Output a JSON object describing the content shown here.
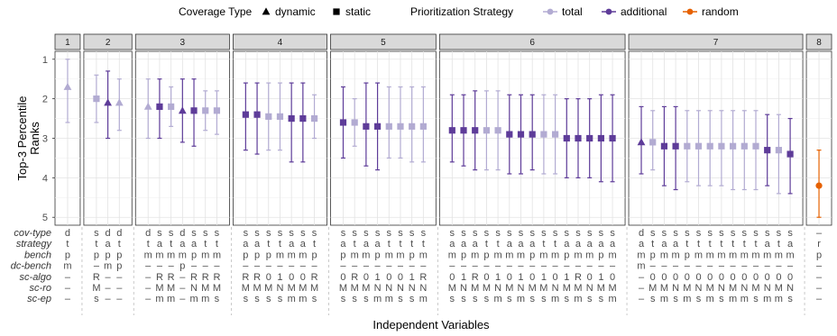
{
  "legend": {
    "shape_title": "Coverage Type",
    "shapes": [
      {
        "label": "dynamic",
        "shape": "triangle"
      },
      {
        "label": "static",
        "shape": "square"
      }
    ],
    "color_title": "Prioritization Strategy",
    "colors": [
      {
        "label": "total",
        "color": "#b2abd2"
      },
      {
        "label": "additional",
        "color": "#5e3c99"
      },
      {
        "label": "random",
        "color": "#e66101"
      }
    ]
  },
  "row_labels": [
    "cov-type",
    "strategy",
    "bench",
    "dc-bench",
    "sc-algo",
    "sc-ro",
    "sc-ep"
  ],
  "chart_data": {
    "type": "scatter",
    "ylabel": "Top-3 Percentile Ranks",
    "xlabel": "Independent Variables",
    "ylim": [
      1,
      5
    ],
    "y_reversed": true,
    "yticks": [
      1,
      2,
      3,
      4,
      5
    ],
    "panels": [
      {
        "label": "1",
        "points": [
          {
            "y": 1.7,
            "lo": 1.0,
            "hi": 2.6,
            "color": "total",
            "shape": "triangle",
            "cells": [
              "d",
              "t",
              "p",
              "m",
              "–",
              "–",
              "–"
            ]
          }
        ]
      },
      {
        "label": "2",
        "points": [
          {
            "y": 2.0,
            "lo": 1.4,
            "hi": 2.6,
            "color": "total",
            "shape": "square",
            "cells": [
              "s",
              "t",
              "p",
              "–",
              "R",
              "M",
              "s"
            ]
          },
          {
            "y": 2.1,
            "lo": 1.3,
            "hi": 3.0,
            "color": "additional",
            "shape": "triangle",
            "cells": [
              "d",
              "a",
              "p",
              "m",
              "–",
              "–",
              "–"
            ]
          },
          {
            "y": 2.1,
            "lo": 1.5,
            "hi": 2.8,
            "color": "total",
            "shape": "triangle",
            "cells": [
              "d",
              "t",
              "p",
              "p",
              "–",
              "–",
              "–"
            ]
          }
        ]
      },
      {
        "label": "3",
        "points": [
          {
            "y": 2.2,
            "lo": 1.5,
            "hi": 3.0,
            "color": "total",
            "shape": "triangle",
            "cells": [
              "d",
              "t",
              "m",
              "–",
              "–",
              "–",
              "–"
            ]
          },
          {
            "y": 2.2,
            "lo": 1.5,
            "hi": 3.0,
            "color": "additional",
            "shape": "square",
            "cells": [
              "s",
              "a",
              "m",
              "–",
              "R",
              "M",
              "m"
            ]
          },
          {
            "y": 2.2,
            "lo": 1.7,
            "hi": 2.7,
            "color": "total",
            "shape": "square",
            "cells": [
              "s",
              "t",
              "m",
              "–",
              "R",
              "M",
              "m"
            ]
          },
          {
            "y": 2.3,
            "lo": 1.5,
            "hi": 3.1,
            "color": "additional",
            "shape": "triangle",
            "cells": [
              "d",
              "a",
              "m",
              "p",
              "–",
              "–",
              "–"
            ]
          },
          {
            "y": 2.3,
            "lo": 1.5,
            "hi": 3.2,
            "color": "additional",
            "shape": "square",
            "cells": [
              "s",
              "a",
              "p",
              "–",
              "R",
              "N",
              "m"
            ]
          },
          {
            "y": 2.3,
            "lo": 1.8,
            "hi": 2.8,
            "color": "total",
            "shape": "square",
            "cells": [
              "s",
              "t",
              "m",
              "–",
              "R",
              "M",
              "m"
            ]
          },
          {
            "y": 2.3,
            "lo": 1.8,
            "hi": 2.9,
            "color": "total",
            "shape": "square",
            "cells": [
              "s",
              "t",
              "m",
              "–",
              "R",
              "M",
              "s"
            ]
          }
        ]
      },
      {
        "label": "4",
        "points": [
          {
            "y": 2.4,
            "lo": 1.6,
            "hi": 3.3,
            "color": "additional",
            "shape": "square",
            "cells": [
              "s",
              "a",
              "p",
              "–",
              "R",
              "M",
              "s"
            ]
          },
          {
            "y": 2.4,
            "lo": 1.6,
            "hi": 3.4,
            "color": "additional",
            "shape": "square",
            "cells": [
              "s",
              "a",
              "p",
              "–",
              "R",
              "M",
              "s"
            ]
          },
          {
            "y": 2.45,
            "lo": 1.6,
            "hi": 3.3,
            "color": "total",
            "shape": "square",
            "cells": [
              "s",
              "t",
              "p",
              "–",
              "0",
              "M",
              "s"
            ]
          },
          {
            "y": 2.45,
            "lo": 1.6,
            "hi": 3.3,
            "color": "total",
            "shape": "square",
            "cells": [
              "s",
              "t",
              "m",
              "–",
              "1",
              "N",
              "s"
            ]
          },
          {
            "y": 2.5,
            "lo": 1.6,
            "hi": 3.6,
            "color": "additional",
            "shape": "square",
            "cells": [
              "s",
              "a",
              "m",
              "–",
              "0",
              "M",
              "m"
            ]
          },
          {
            "y": 2.5,
            "lo": 1.6,
            "hi": 3.6,
            "color": "additional",
            "shape": "square",
            "cells": [
              "s",
              "a",
              "m",
              "–",
              "0",
              "M",
              "m"
            ]
          },
          {
            "y": 2.5,
            "lo": 1.9,
            "hi": 3.0,
            "color": "total",
            "shape": "square",
            "cells": [
              "s",
              "t",
              "p",
              "–",
              "R",
              "M",
              "s"
            ]
          }
        ]
      },
      {
        "label": "5",
        "points": [
          {
            "y": 2.6,
            "lo": 1.7,
            "hi": 3.5,
            "color": "additional",
            "shape": "square",
            "cells": [
              "s",
              "a",
              "p",
              "–",
              "0",
              "M",
              "s"
            ]
          },
          {
            "y": 2.6,
            "lo": 2.0,
            "hi": 3.2,
            "color": "total",
            "shape": "square",
            "cells": [
              "s",
              "t",
              "m",
              "–",
              "R",
              "M",
              "s"
            ]
          },
          {
            "y": 2.7,
            "lo": 1.6,
            "hi": 3.7,
            "color": "additional",
            "shape": "square",
            "cells": [
              "s",
              "a",
              "m",
              "–",
              "0",
              "M",
              "s"
            ]
          },
          {
            "y": 2.7,
            "lo": 1.6,
            "hi": 3.8,
            "color": "additional",
            "shape": "square",
            "cells": [
              "s",
              "a",
              "p",
              "–",
              "1",
              "N",
              "m"
            ]
          },
          {
            "y": 2.7,
            "lo": 1.7,
            "hi": 3.5,
            "color": "total",
            "shape": "square",
            "cells": [
              "s",
              "t",
              "m",
              "–",
              "0",
              "N",
              "m"
            ]
          },
          {
            "y": 2.7,
            "lo": 1.7,
            "hi": 3.5,
            "color": "total",
            "shape": "square",
            "cells": [
              "s",
              "t",
              "m",
              "–",
              "0",
              "N",
              "s"
            ]
          },
          {
            "y": 2.7,
            "lo": 1.7,
            "hi": 3.6,
            "color": "total",
            "shape": "square",
            "cells": [
              "s",
              "t",
              "p",
              "–",
              "1",
              "N",
              "s"
            ]
          },
          {
            "y": 2.7,
            "lo": 1.7,
            "hi": 3.6,
            "color": "total",
            "shape": "square",
            "cells": [
              "s",
              "t",
              "m",
              "–",
              "R",
              "N",
              "m"
            ]
          }
        ]
      },
      {
        "label": "6",
        "points": [
          {
            "y": 2.8,
            "lo": 1.9,
            "hi": 3.6,
            "color": "additional",
            "shape": "square",
            "cells": [
              "s",
              "a",
              "m",
              "–",
              "0",
              "M",
              "s"
            ]
          },
          {
            "y": 2.8,
            "lo": 1.9,
            "hi": 3.7,
            "color": "additional",
            "shape": "square",
            "cells": [
              "s",
              "a",
              "p",
              "–",
              "1",
              "N",
              "s"
            ]
          },
          {
            "y": 2.8,
            "lo": 1.8,
            "hi": 3.8,
            "color": "additional",
            "shape": "square",
            "cells": [
              "s",
              "a",
              "m",
              "–",
              "R",
              "M",
              "s"
            ]
          },
          {
            "y": 2.8,
            "lo": 1.8,
            "hi": 3.8,
            "color": "total",
            "shape": "square",
            "cells": [
              "s",
              "t",
              "p",
              "–",
              "0",
              "M",
              "s"
            ]
          },
          {
            "y": 2.8,
            "lo": 1.8,
            "hi": 3.8,
            "color": "total",
            "shape": "square",
            "cells": [
              "s",
              "t",
              "m",
              "–",
              "1",
              "N",
              "m"
            ]
          },
          {
            "y": 2.9,
            "lo": 1.9,
            "hi": 3.9,
            "color": "additional",
            "shape": "square",
            "cells": [
              "s",
              "a",
              "m",
              "–",
              "0",
              "M",
              "s"
            ]
          },
          {
            "y": 2.9,
            "lo": 1.9,
            "hi": 3.9,
            "color": "additional",
            "shape": "square",
            "cells": [
              "s",
              "a",
              "m",
              "–",
              "1",
              "N",
              "m"
            ]
          },
          {
            "y": 2.9,
            "lo": 1.9,
            "hi": 3.8,
            "color": "additional",
            "shape": "square",
            "cells": [
              "s",
              "a",
              "p",
              "–",
              "0",
              "M",
              "s"
            ]
          },
          {
            "y": 2.9,
            "lo": 1.9,
            "hi": 3.9,
            "color": "total",
            "shape": "square",
            "cells": [
              "s",
              "t",
              "m",
              "–",
              "1",
              "M",
              "s"
            ]
          },
          {
            "y": 2.9,
            "lo": 1.9,
            "hi": 3.9,
            "color": "total",
            "shape": "square",
            "cells": [
              "s",
              "t",
              "m",
              "–",
              "0",
              "N",
              "m"
            ]
          },
          {
            "y": 3.0,
            "lo": 2.0,
            "hi": 4.0,
            "color": "additional",
            "shape": "square",
            "cells": [
              "s",
              "a",
              "p",
              "–",
              "1",
              "M",
              "s"
            ]
          },
          {
            "y": 3.0,
            "lo": 2.0,
            "hi": 4.0,
            "color": "additional",
            "shape": "square",
            "cells": [
              "s",
              "a",
              "m",
              "–",
              "R",
              "M",
              "m"
            ]
          },
          {
            "y": 3.0,
            "lo": 2.0,
            "hi": 4.0,
            "color": "additional",
            "shape": "square",
            "cells": [
              "s",
              "a",
              "m",
              "–",
              "0",
              "N",
              "s"
            ]
          },
          {
            "y": 3.0,
            "lo": 1.9,
            "hi": 4.1,
            "color": "additional",
            "shape": "square",
            "cells": [
              "s",
              "a",
              "p",
              "–",
              "1",
              "M",
              "s"
            ]
          },
          {
            "y": 3.0,
            "lo": 1.9,
            "hi": 4.1,
            "color": "additional",
            "shape": "square",
            "cells": [
              "s",
              "a",
              "m",
              "–",
              "0",
              "M",
              "m"
            ]
          }
        ]
      },
      {
        "label": "7",
        "points": [
          {
            "y": 3.1,
            "lo": 2.2,
            "hi": 3.9,
            "color": "additional",
            "shape": "triangle",
            "cells": [
              "d",
              "a",
              "m",
              "m",
              "–",
              "–",
              "–"
            ]
          },
          {
            "y": 3.1,
            "lo": 2.3,
            "hi": 3.8,
            "color": "total",
            "shape": "square",
            "cells": [
              "s",
              "t",
              "p",
              "–",
              "0",
              "M",
              "s"
            ]
          },
          {
            "y": 3.2,
            "lo": 2.2,
            "hi": 4.2,
            "color": "additional",
            "shape": "square",
            "cells": [
              "s",
              "a",
              "m",
              "–",
              "0",
              "M",
              "m"
            ]
          },
          {
            "y": 3.2,
            "lo": 2.2,
            "hi": 4.3,
            "color": "additional",
            "shape": "square",
            "cells": [
              "s",
              "a",
              "m",
              "–",
              "0",
              "N",
              "s"
            ]
          },
          {
            "y": 3.2,
            "lo": 2.3,
            "hi": 4.1,
            "color": "total",
            "shape": "square",
            "cells": [
              "s",
              "t",
              "p",
              "–",
              "0",
              "M",
              "m"
            ]
          },
          {
            "y": 3.2,
            "lo": 2.3,
            "hi": 4.2,
            "color": "total",
            "shape": "square",
            "cells": [
              "s",
              "t",
              "m",
              "–",
              "0",
              "N",
              "s"
            ]
          },
          {
            "y": 3.2,
            "lo": 2.3,
            "hi": 4.2,
            "color": "total",
            "shape": "square",
            "cells": [
              "s",
              "t",
              "m",
              "–",
              "0",
              "M",
              "m"
            ]
          },
          {
            "y": 3.2,
            "lo": 2.3,
            "hi": 4.2,
            "color": "total",
            "shape": "square",
            "cells": [
              "s",
              "t",
              "m",
              "–",
              "0",
              "N",
              "s"
            ]
          },
          {
            "y": 3.2,
            "lo": 2.3,
            "hi": 4.3,
            "color": "total",
            "shape": "square",
            "cells": [
              "s",
              "t",
              "m",
              "–",
              "0",
              "M",
              "m"
            ]
          },
          {
            "y": 3.2,
            "lo": 2.3,
            "hi": 4.3,
            "color": "total",
            "shape": "square",
            "cells": [
              "s",
              "t",
              "m",
              "–",
              "0",
              "N",
              "m"
            ]
          },
          {
            "y": 3.2,
            "lo": 2.3,
            "hi": 4.3,
            "color": "total",
            "shape": "square",
            "cells": [
              "s",
              "t",
              "m",
              "–",
              "0",
              "M",
              "s"
            ]
          },
          {
            "y": 3.3,
            "lo": 2.4,
            "hi": 4.2,
            "color": "additional",
            "shape": "square",
            "cells": [
              "s",
              "a",
              "m",
              "–",
              "0",
              "N",
              "m"
            ]
          },
          {
            "y": 3.3,
            "lo": 2.4,
            "hi": 4.4,
            "color": "total",
            "shape": "square",
            "cells": [
              "s",
              "t",
              "m",
              "–",
              "0",
              "M",
              "m"
            ]
          },
          {
            "y": 3.4,
            "lo": 2.5,
            "hi": 4.4,
            "color": "additional",
            "shape": "square",
            "cells": [
              "s",
              "a",
              "m",
              "–",
              "0",
              "N",
              "s"
            ]
          }
        ]
      },
      {
        "label": "8",
        "points": [
          {
            "y": 4.2,
            "lo": 3.3,
            "hi": 5.0,
            "color": "random",
            "shape": "circle",
            "cells": [
              "–",
              "r",
              "p",
              "–",
              "–",
              "–",
              "–"
            ]
          }
        ]
      }
    ]
  }
}
